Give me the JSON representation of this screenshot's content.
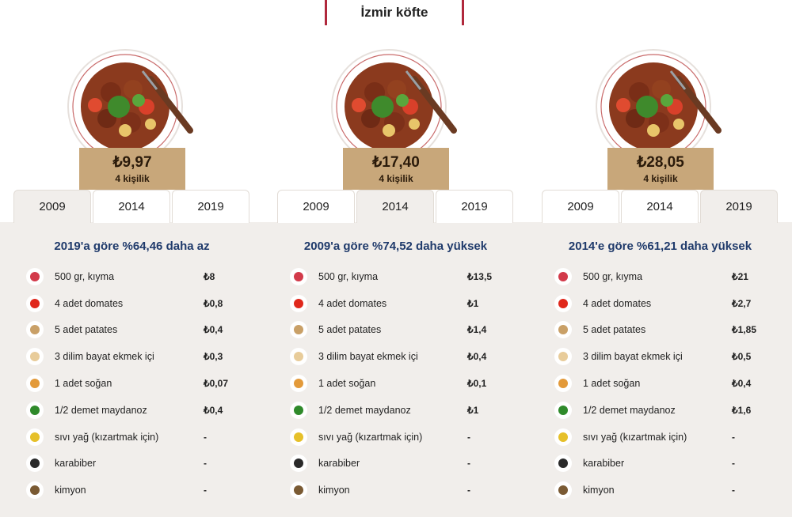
{
  "page_title": "İzmir köfte",
  "columns": [
    {
      "price": "₺9,97",
      "people": "4 kişilik",
      "tabs": [
        "2009",
        "2014",
        "2019"
      ],
      "active_tab": 0,
      "heading": "2019'a göre %64,46 daha az",
      "ingredients": [
        {
          "icon": "meat-icon",
          "name": "500 gr, kıyma",
          "price": "₺8"
        },
        {
          "icon": "tomato-icon",
          "name": "4 adet domates",
          "price": "₺0,8"
        },
        {
          "icon": "potato-icon",
          "name": "5 adet patates",
          "price": "₺0,4"
        },
        {
          "icon": "bread-icon",
          "name": "3 dilim bayat ekmek içi",
          "price": "₺0,3"
        },
        {
          "icon": "onion-icon",
          "name": "1 adet soğan",
          "price": "₺0,07"
        },
        {
          "icon": "parsley-icon",
          "name": "1/2 demet maydanoz",
          "price": "₺0,4"
        },
        {
          "icon": "oil-icon",
          "name": "sıvı yağ (kızartmak için)",
          "price": "-"
        },
        {
          "icon": "pepper-icon",
          "name": "karabiber",
          "price": "-"
        },
        {
          "icon": "cumin-icon",
          "name": "kimyon",
          "price": "-"
        }
      ]
    },
    {
      "price": "₺17,40",
      "people": "4 kişilik",
      "tabs": [
        "2009",
        "2014",
        "2019"
      ],
      "active_tab": 1,
      "heading": "2009'a göre %74,52 daha yüksek",
      "ingredients": [
        {
          "icon": "meat-icon",
          "name": "500 gr, kıyma",
          "price": "₺13,5"
        },
        {
          "icon": "tomato-icon",
          "name": "4 adet domates",
          "price": "₺1"
        },
        {
          "icon": "potato-icon",
          "name": "5 adet patates",
          "price": "₺1,4"
        },
        {
          "icon": "bread-icon",
          "name": "3 dilim bayat ekmek içi",
          "price": "₺0,4"
        },
        {
          "icon": "onion-icon",
          "name": "1 adet soğan",
          "price": "₺0,1"
        },
        {
          "icon": "parsley-icon",
          "name": "1/2 demet maydanoz",
          "price": "₺1"
        },
        {
          "icon": "oil-icon",
          "name": "sıvı yağ (kızartmak için)",
          "price": "-"
        },
        {
          "icon": "pepper-icon",
          "name": "karabiber",
          "price": "-"
        },
        {
          "icon": "cumin-icon",
          "name": "kimyon",
          "price": "-"
        }
      ]
    },
    {
      "price": "₺28,05",
      "people": "4 kişilik",
      "tabs": [
        "2009",
        "2014",
        "2019"
      ],
      "active_tab": 2,
      "heading": "2014'e göre %61,21 daha yüksek",
      "ingredients": [
        {
          "icon": "meat-icon",
          "name": "500 gr, kıyma",
          "price": "₺21"
        },
        {
          "icon": "tomato-icon",
          "name": "4 adet domates",
          "price": "₺2,7"
        },
        {
          "icon": "potato-icon",
          "name": "5 adet patates",
          "price": "₺1,85"
        },
        {
          "icon": "bread-icon",
          "name": "3 dilim bayat ekmek içi",
          "price": "₺0,5"
        },
        {
          "icon": "onion-icon",
          "name": "1 adet soğan",
          "price": "₺0,4"
        },
        {
          "icon": "parsley-icon",
          "name": "1/2 demet maydanoz",
          "price": "₺1,6"
        },
        {
          "icon": "oil-icon",
          "name": "sıvı yağ (kızartmak için)",
          "price": "-"
        },
        {
          "icon": "pepper-icon",
          "name": "karabiber",
          "price": "-"
        },
        {
          "icon": "cumin-icon",
          "name": "kimyon",
          "price": "-"
        }
      ]
    }
  ]
}
